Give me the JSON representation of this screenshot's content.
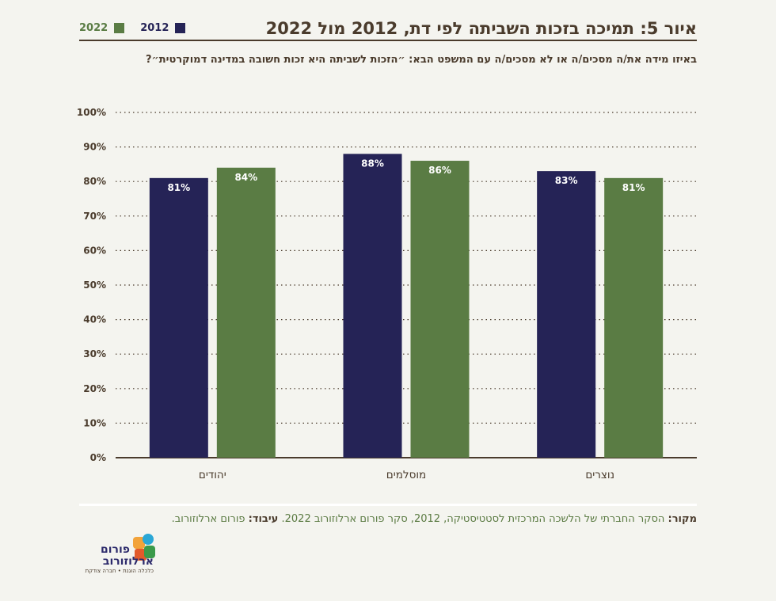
{
  "title": "איור 5: תמיכה בזכות השביתה לפי דת, 2012 מול 2022",
  "subtitle": "באיזו מידה את/ה מסכים/ה או לא מסכים/ה עם המשפט הבא: ״הזכות לשביתה היא זכות חשובה במדינה דמוקרטית״?",
  "legend": [
    {
      "label": "2012",
      "color": "#252356"
    },
    {
      "label": "2022",
      "color": "#5a7c44"
    }
  ],
  "source": {
    "label_source": "מקור:",
    "text_source": "הסקר החברתי של הלשכה המרכזית לסטטיסטיקה, 2012, סקר פורום ארלוזורוב 2022.",
    "label_processing": "עיבוד:",
    "text_processing": "פורום ארלוזורוב."
  },
  "logo": {
    "line1": "פורום",
    "line2": "ארלוזורוב",
    "tagline": "כלכלה הוגנת • חברה צודקת",
    "colors": [
      "#f2a33a",
      "#2aa7d6",
      "#e25a2b",
      "#3a9a4a"
    ]
  },
  "chart_data": {
    "type": "bar",
    "categories": [
      "יהודים",
      "מוסלמים",
      "נוצרים"
    ],
    "series": [
      {
        "name": "2012",
        "color": "#252356",
        "values": [
          81,
          88,
          83
        ],
        "labels": [
          "81%",
          "88%",
          "83%"
        ]
      },
      {
        "name": "2022",
        "color": "#5a7c44",
        "values": [
          84,
          86,
          81
        ],
        "labels": [
          "84%",
          "86%",
          "81%"
        ]
      }
    ],
    "ylim": [
      0,
      100
    ],
    "yticks": [
      "0%",
      "10%",
      "20%",
      "30%",
      "40%",
      "50%",
      "60%",
      "70%",
      "80%",
      "90%",
      "100%"
    ],
    "grid": "dotted"
  }
}
